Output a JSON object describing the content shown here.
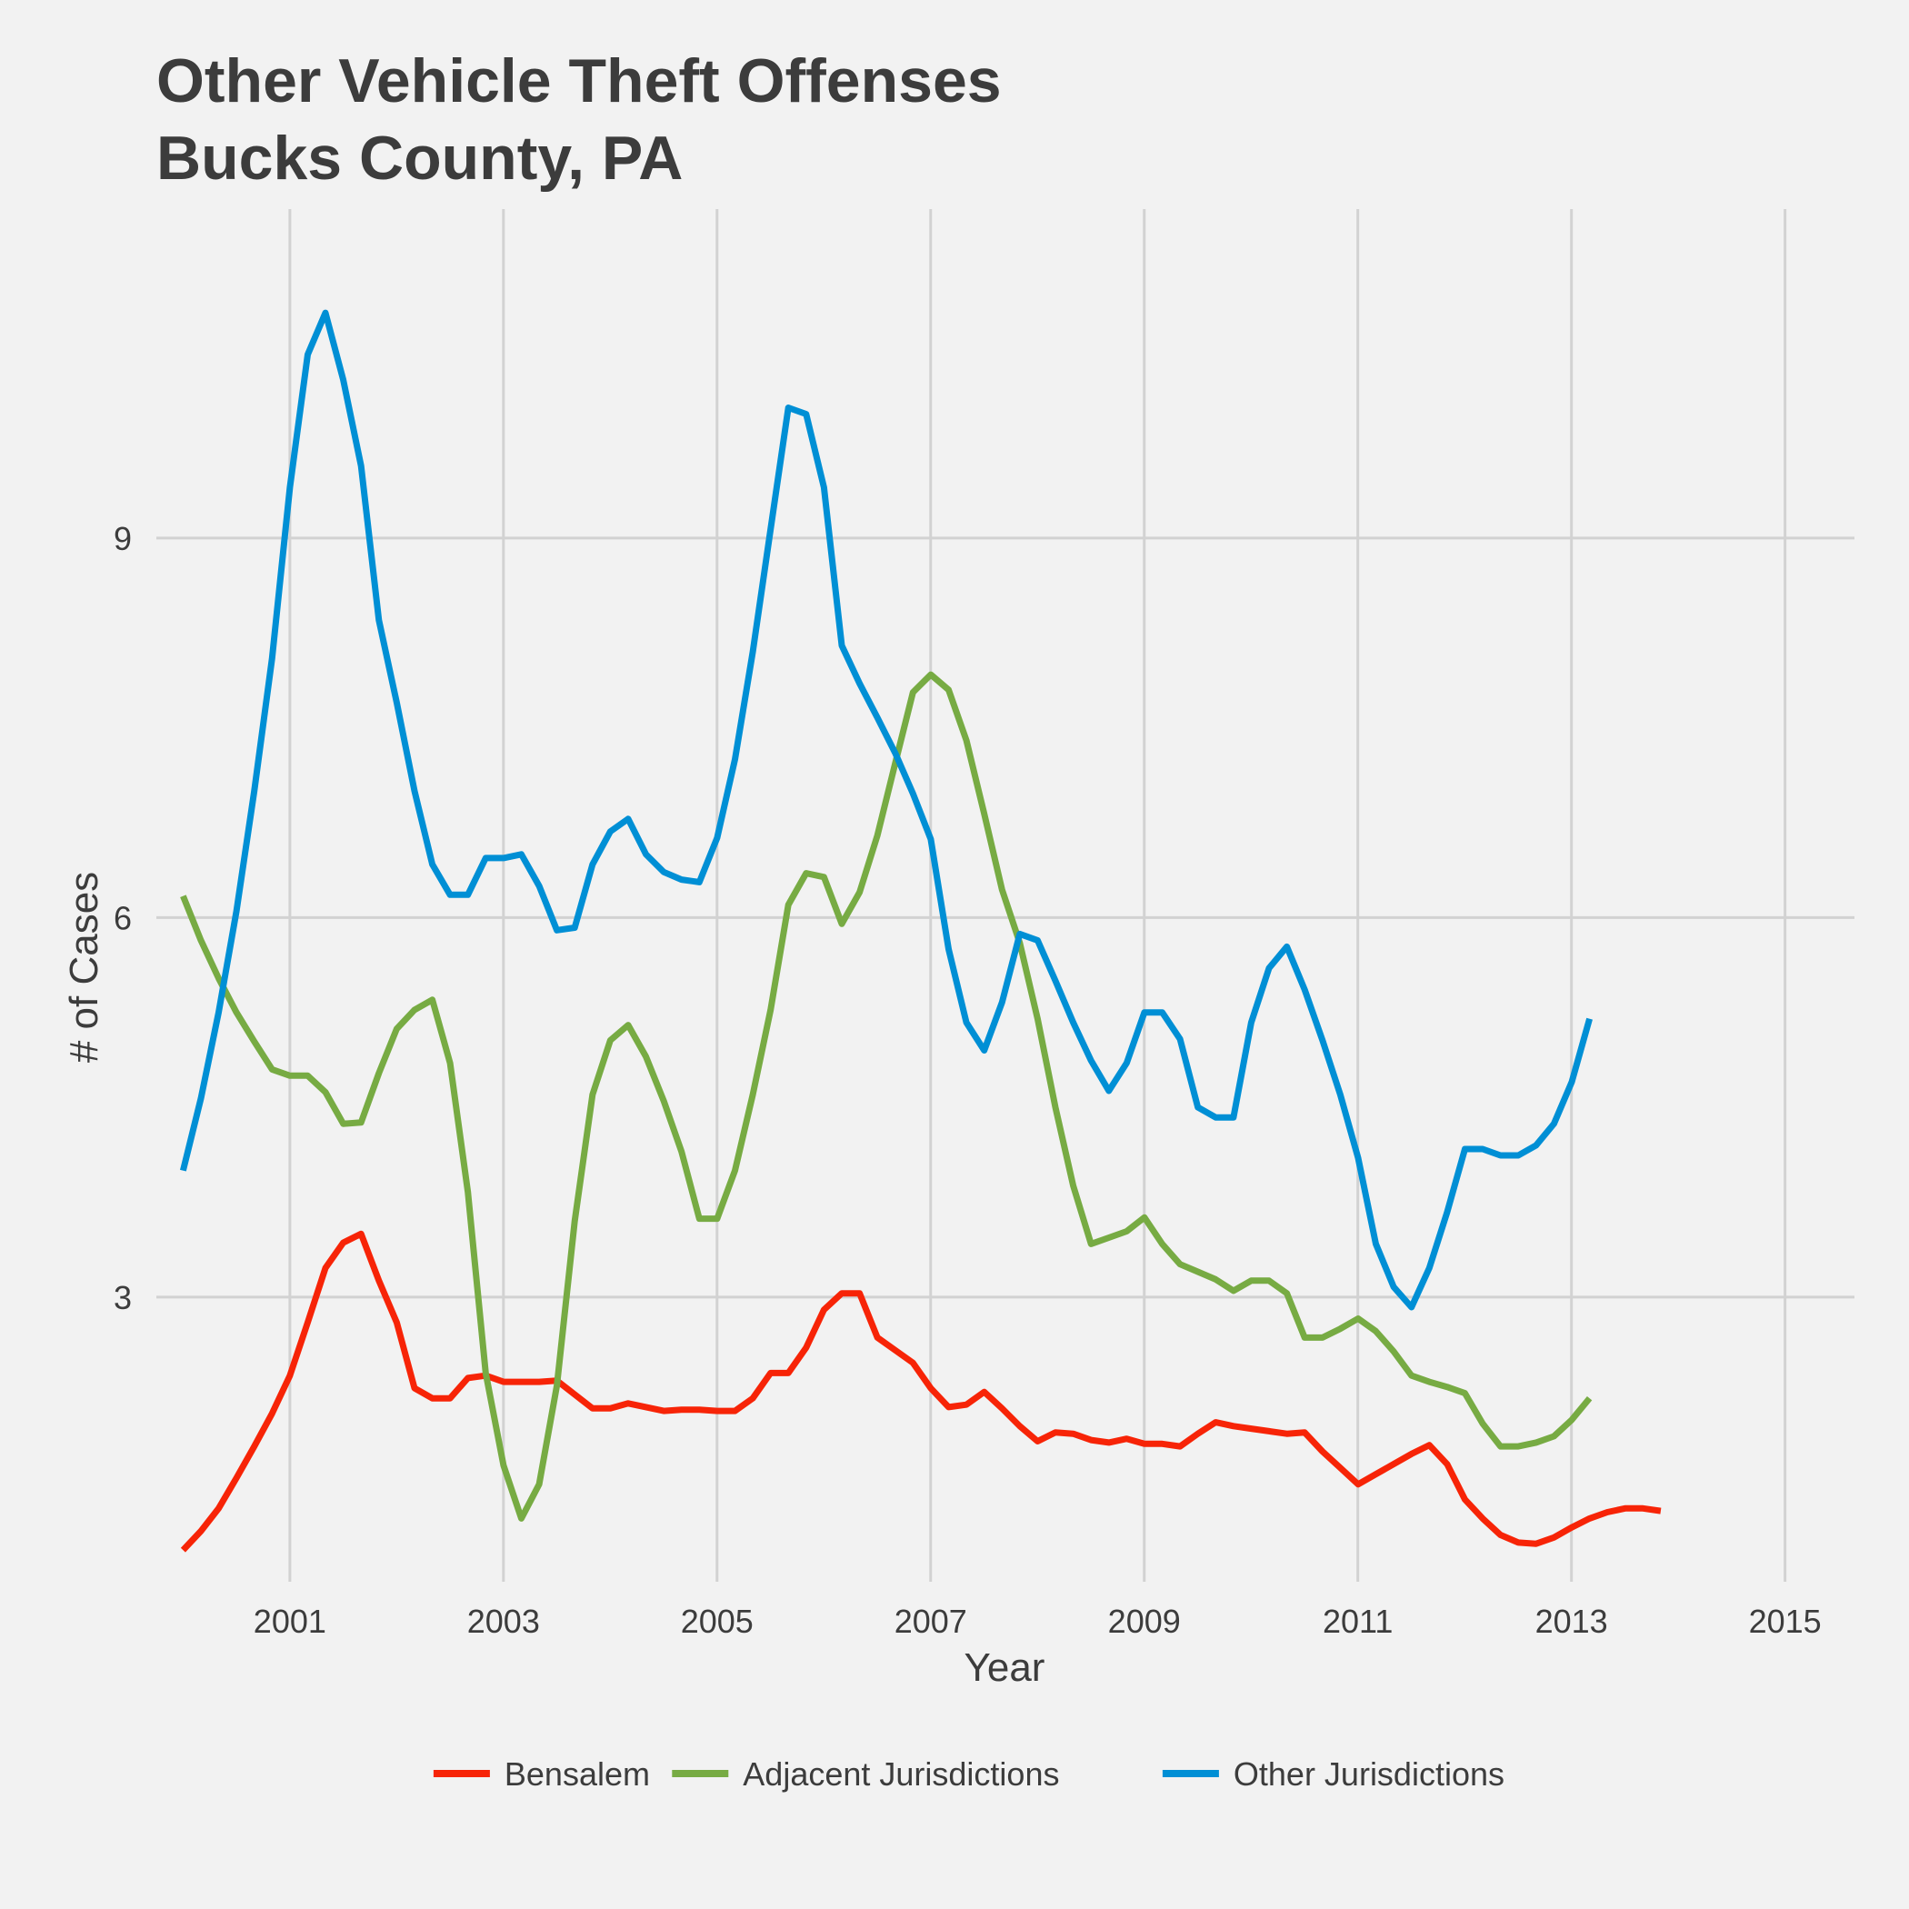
{
  "chart_data": {
    "type": "line",
    "title": [
      "Other Vehicle Theft Offenses",
      "Bucks County, PA"
    ],
    "xlabel": "Year",
    "ylabel": "# of Cases",
    "xlim": [
      1999.75,
      2015.65
    ],
    "ylim": [
      0.75,
      11.6
    ],
    "x_ticks": [
      2001,
      2003,
      2005,
      2007,
      2009,
      2011,
      2013,
      2015
    ],
    "x_tick_labels": [
      "2001",
      "2003",
      "2005",
      "2007",
      "2009",
      "2011",
      "2013",
      "2015"
    ],
    "y_ticks": [
      3,
      6,
      9
    ],
    "y_tick_labels": [
      "3",
      "6",
      "9"
    ],
    "grid": true,
    "legend_position": "bottom",
    "x_start": 2000.0,
    "x_step": 0.1667,
    "series": [
      {
        "name": "Bensalem",
        "color": "#f72407",
        "values": [
          1.0,
          1.15,
          1.33,
          1.57,
          1.82,
          2.08,
          2.38,
          2.8,
          3.23,
          3.43,
          3.5,
          3.13,
          2.8,
          2.28,
          2.2,
          2.2,
          2.36,
          2.38,
          2.33,
          2.33,
          2.33,
          2.34,
          2.23,
          2.12,
          2.12,
          2.16,
          2.13,
          2.1,
          2.11,
          2.11,
          2.1,
          2.1,
          2.2,
          2.4,
          2.4,
          2.6,
          2.9,
          3.03,
          3.03,
          2.68,
          2.58,
          2.48,
          2.28,
          2.13,
          2.15,
          2.25,
          2.12,
          1.98,
          1.86,
          1.93,
          1.92,
          1.87,
          1.85,
          1.88,
          1.84,
          1.84,
          1.82,
          1.92,
          2.01,
          1.98,
          1.96,
          1.94,
          1.92,
          1.93,
          1.78,
          1.65,
          1.52,
          1.6,
          1.68,
          1.76,
          1.83,
          1.68,
          1.4,
          1.25,
          1.12,
          1.06,
          1.05,
          1.1,
          1.18,
          1.25,
          1.3,
          1.33,
          1.33,
          1.31
        ]
      },
      {
        "name": "Adjacent Jurisdictions",
        "color": "#77ab43",
        "values": [
          6.17,
          5.82,
          5.52,
          5.25,
          5.02,
          4.8,
          4.75,
          4.75,
          4.62,
          4.37,
          4.38,
          4.77,
          5.12,
          5.27,
          5.35,
          4.85,
          3.83,
          2.4,
          1.67,
          1.25,
          1.52,
          2.3,
          3.6,
          4.6,
          5.03,
          5.15,
          4.9,
          4.55,
          4.15,
          3.62,
          3.62,
          4.0,
          4.6,
          5.27,
          6.1,
          6.35,
          6.32,
          5.95,
          6.2,
          6.65,
          7.22,
          7.78,
          7.92,
          7.8,
          7.4,
          6.82,
          6.22,
          5.8,
          5.2,
          4.5,
          3.88,
          3.42,
          3.47,
          3.52,
          3.63,
          3.42,
          3.26,
          3.2,
          3.14,
          3.05,
          3.13,
          3.13,
          3.03,
          2.68,
          2.68,
          2.75,
          2.83,
          2.73,
          2.57,
          2.38,
          2.33,
          2.29,
          2.24,
          2.0,
          1.82,
          1.82,
          1.85,
          1.9,
          2.03,
          2.2
        ]
      },
      {
        "name": "Other Jurisdictions",
        "color": "#008fd5",
        "values": [
          4.0,
          4.57,
          5.25,
          6.05,
          7.0,
          8.05,
          9.4,
          10.45,
          10.78,
          10.25,
          9.57,
          8.35,
          7.7,
          7.0,
          6.42,
          6.18,
          6.18,
          6.47,
          6.47,
          6.5,
          6.25,
          5.9,
          5.92,
          6.42,
          6.68,
          6.78,
          6.5,
          6.36,
          6.3,
          6.28,
          6.63,
          7.25,
          8.1,
          9.07,
          10.03,
          9.98,
          9.4,
          8.15,
          7.85,
          7.58,
          7.3,
          6.98,
          6.62,
          5.75,
          5.17,
          4.95,
          5.33,
          5.87,
          5.82,
          5.5,
          5.17,
          4.87,
          4.63,
          4.85,
          5.25,
          5.25,
          5.04,
          4.5,
          4.42,
          4.42,
          5.17,
          5.6,
          5.77,
          5.43,
          5.03,
          4.6,
          4.1,
          3.42,
          3.08,
          2.92,
          3.23,
          3.67,
          4.17,
          4.17,
          4.12,
          4.12,
          4.2,
          4.37,
          4.7,
          5.2
        ]
      }
    ]
  }
}
